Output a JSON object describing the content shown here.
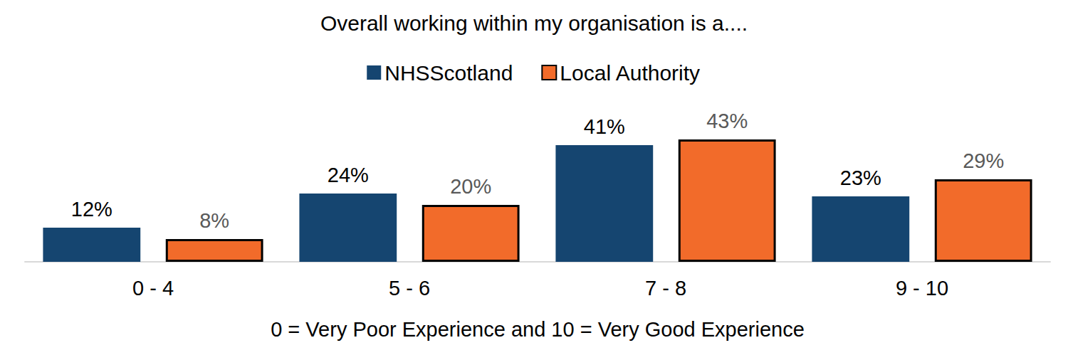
{
  "chart_data": {
    "type": "bar",
    "title": "Overall working within my organisation is a....",
    "x_label": "0 = Very Poor Experience and 10 = Very Good Experience",
    "categories": [
      "0 - 4",
      "5 - 6",
      "7 - 8",
      "9 - 10"
    ],
    "series": [
      {
        "name": "NHSScotland",
        "color": "#154570",
        "values": [
          12,
          24,
          41,
          23
        ],
        "value_labels": [
          "12%",
          "24%",
          "41%",
          "23%"
        ]
      },
      {
        "name": "Local Authority",
        "color": "#f26b2a",
        "values": [
          8,
          20,
          43,
          29
        ],
        "value_labels": [
          "8%",
          "20%",
          "43%",
          "29%"
        ]
      }
    ],
    "ylim": [
      0,
      43
    ],
    "grid": false,
    "legend": "top",
    "data_labels": true,
    "tick_labels": "x"
  }
}
